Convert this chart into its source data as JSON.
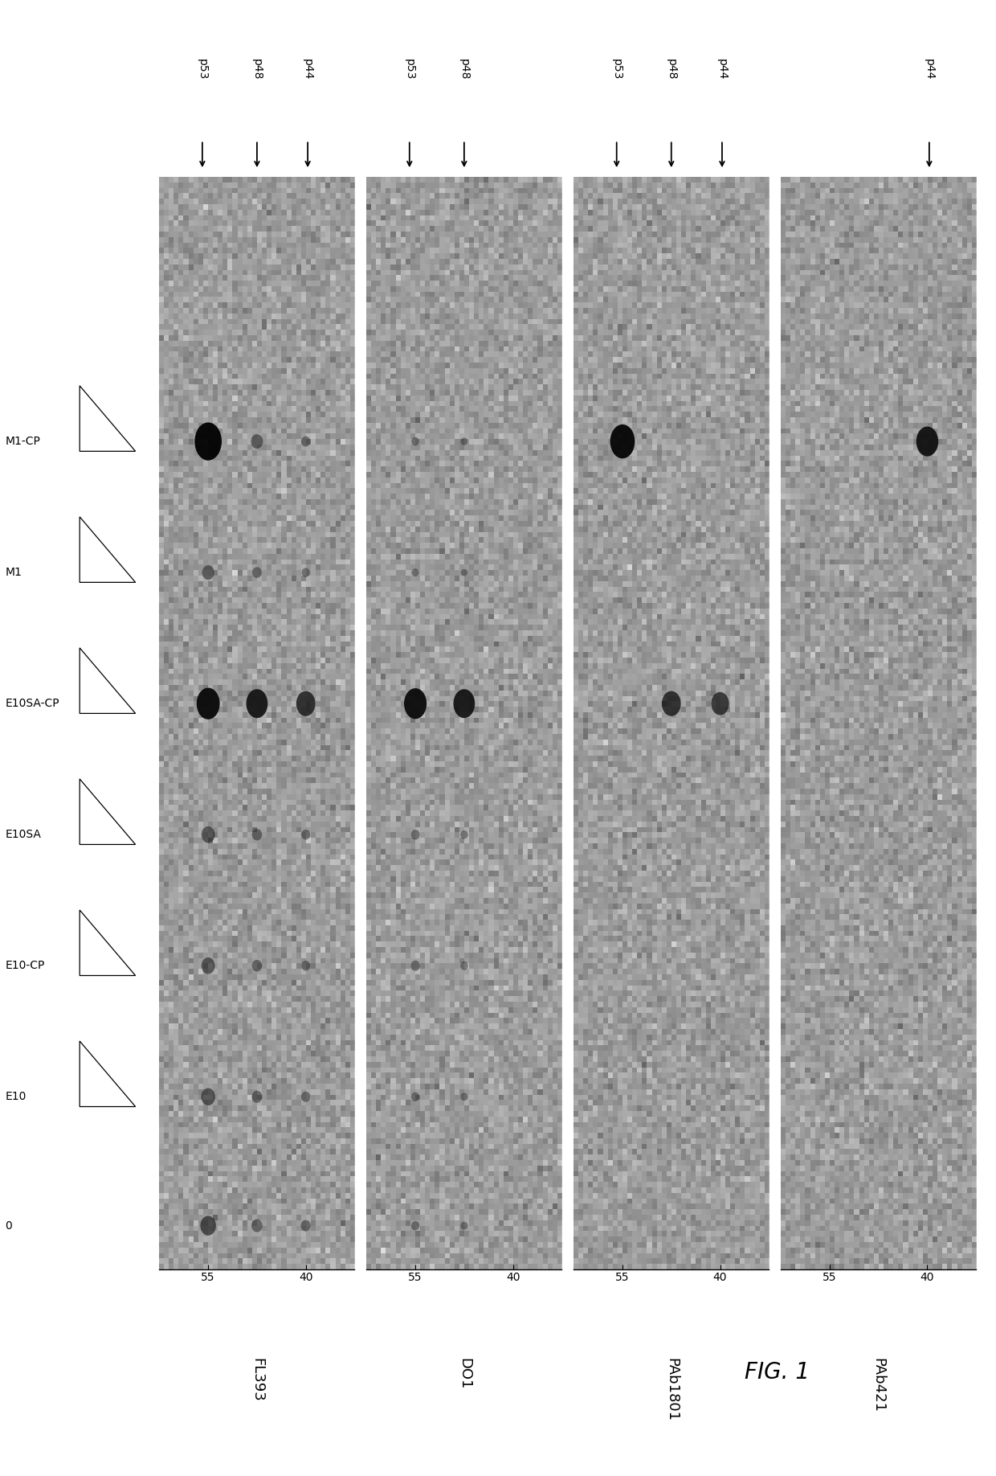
{
  "panels": [
    "FL393",
    "DO1",
    "PAb1801",
    "PAb421"
  ],
  "panel_arrow_labels": {
    "FL393": [
      "p53",
      "p48",
      "p44"
    ],
    "DO1": [
      "p53",
      "p48"
    ],
    "PAb1801": [
      "p53",
      "p48",
      "p44"
    ],
    "PAb421": [
      "p44"
    ]
  },
  "lane_labels": [
    "0",
    "E10",
    "E10-CP",
    "E10SA",
    "E10SA-CP",
    "M1",
    "M1-CP"
  ],
  "ytick_labels": [
    "55",
    "40"
  ],
  "bg_color": "#bebebe",
  "fig_bg": "#ffffff",
  "fig_label": "FIG. 1",
  "lane_y": {
    "0": 0.04,
    "E10": 0.158,
    "E10-CP": 0.278,
    "E10SA": 0.398,
    "E10SA-CP": 0.518,
    "M1": 0.638,
    "M1-CP": 0.758
  },
  "band_x": {
    "p53": 0.25,
    "p48": 0.5,
    "p44": 0.75
  },
  "panel_bands": {
    "FL393": {
      "0": [
        [
          "p53",
          1.0
        ],
        [
          "p48",
          0.5
        ],
        [
          "p44",
          0.4
        ]
      ],
      "E10": [
        [
          "p53",
          0.8
        ],
        [
          "p48",
          0.45
        ],
        [
          "p44",
          0.35
        ]
      ],
      "E10-CP": [
        [
          "p53",
          0.75
        ],
        [
          "p48",
          0.42
        ],
        [
          "p44",
          0.33
        ]
      ],
      "E10SA": [
        [
          "p53",
          0.75
        ],
        [
          "p48",
          0.42
        ],
        [
          "p44",
          0.33
        ]
      ],
      "E10SA-CP": [
        [
          "p53",
          2.2
        ],
        [
          "p48",
          1.9
        ],
        [
          "p44",
          1.5
        ]
      ],
      "M1": [
        [
          "p53",
          0.6
        ],
        [
          "p48",
          0.38
        ],
        [
          "p44",
          0.28
        ]
      ],
      "M1-CP": [
        [
          "p53",
          3.0
        ],
        [
          "p48",
          0.6
        ],
        [
          "p44",
          0.35
        ]
      ]
    },
    "DO1": {
      "0": [
        [
          "p53",
          0.28
        ],
        [
          "p48",
          0.22
        ]
      ],
      "E10": [
        [
          "p53",
          0.28
        ],
        [
          "p48",
          0.22
        ]
      ],
      "E10-CP": [
        [
          "p53",
          0.35
        ],
        [
          "p48",
          0.26
        ]
      ],
      "E10SA": [
        [
          "p53",
          0.32
        ],
        [
          "p48",
          0.24
        ]
      ],
      "E10SA-CP": [
        [
          "p53",
          2.1
        ],
        [
          "p48",
          1.9
        ]
      ],
      "M1": [
        [
          "p53",
          0.22
        ],
        [
          "p48",
          0.18
        ]
      ],
      "M1-CP": [
        [
          "p53",
          0.25
        ],
        [
          "p48",
          0.2
        ]
      ]
    },
    "PAb1801": {
      "0": [],
      "E10": [],
      "E10-CP": [],
      "E10SA": [],
      "E10SA-CP": [
        [
          "p48",
          1.5
        ],
        [
          "p44",
          1.3
        ]
      ],
      "M1": [],
      "M1-CP": [
        [
          "p53",
          2.5
        ]
      ]
    },
    "PAb421": {
      "0": [],
      "E10": [],
      "E10-CP": [],
      "E10SA": [],
      "E10SA-CP": [],
      "M1": [],
      "M1-CP": [
        [
          "p44",
          2.0
        ]
      ]
    }
  },
  "arrow_x_norm": {
    "p53": 0.22,
    "p48": 0.5,
    "p44": 0.76
  }
}
